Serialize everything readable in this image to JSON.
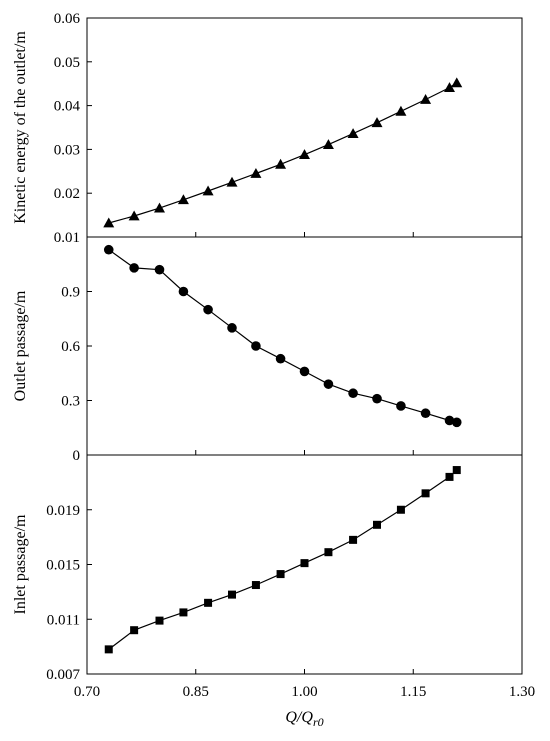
{
  "chart_data": [
    {
      "type": "line",
      "marker": "triangle",
      "ylabel": "Kinetic energy of the outlet/m",
      "ylim": [
        0.01,
        0.06
      ],
      "yticks": [
        "0.01",
        "0.02",
        "0.03",
        "0.04",
        "0.05",
        "0.06"
      ],
      "ytick_values": [
        0.01,
        0.02,
        0.03,
        0.04,
        0.05,
        0.06
      ],
      "x": [
        0.73,
        0.765,
        0.8,
        0.833,
        0.867,
        0.9,
        0.933,
        0.967,
        1.0,
        1.033,
        1.067,
        1.1,
        1.133,
        1.167,
        1.2,
        1.21
      ],
      "y": [
        0.0132,
        0.0148,
        0.0166,
        0.0185,
        0.0205,
        0.0225,
        0.0245,
        0.0266,
        0.0288,
        0.0311,
        0.0336,
        0.0361,
        0.0387,
        0.0414,
        0.0441,
        0.0452
      ]
    },
    {
      "type": "line",
      "marker": "circle",
      "ylabel": "Outlet passage/m",
      "ylim": [
        0,
        1.2
      ],
      "yticks": [
        "0",
        "0.3",
        "0.6",
        "0.9"
      ],
      "ytick_values": [
        0,
        0.3,
        0.6,
        0.9
      ],
      "x": [
        0.73,
        0.765,
        0.8,
        0.833,
        0.867,
        0.9,
        0.933,
        0.967,
        1.0,
        1.033,
        1.067,
        1.1,
        1.133,
        1.167,
        1.2,
        1.21
      ],
      "y": [
        1.13,
        1.03,
        1.02,
        0.9,
        0.8,
        0.7,
        0.6,
        0.53,
        0.46,
        0.39,
        0.34,
        0.31,
        0.27,
        0.23,
        0.19,
        0.18
      ]
    },
    {
      "type": "line",
      "marker": "square",
      "ylabel": "Inlet passage/m",
      "ylim": [
        0.007,
        0.023
      ],
      "yticks": [
        "0.007",
        "0.011",
        "0.015",
        "0.019"
      ],
      "ytick_values": [
        0.007,
        0.011,
        0.015,
        0.019
      ],
      "x": [
        0.73,
        0.765,
        0.8,
        0.833,
        0.867,
        0.9,
        0.933,
        0.967,
        1.0,
        1.033,
        1.067,
        1.1,
        1.133,
        1.167,
        1.2,
        1.21
      ],
      "y": [
        0.0088,
        0.0102,
        0.0109,
        0.0115,
        0.0122,
        0.0128,
        0.0135,
        0.0143,
        0.0151,
        0.0159,
        0.0168,
        0.0179,
        0.019,
        0.0202,
        0.0214,
        0.0219
      ]
    }
  ],
  "x_axis": {
    "label_main": "Q/Q",
    "label_sub": "r0",
    "xlim": [
      0.7,
      1.3
    ],
    "ticks": [
      "0.70",
      "0.85",
      "1.00",
      "1.15",
      "1.30"
    ],
    "tick_values": [
      0.7,
      0.85,
      1.0,
      1.15,
      1.3
    ]
  }
}
